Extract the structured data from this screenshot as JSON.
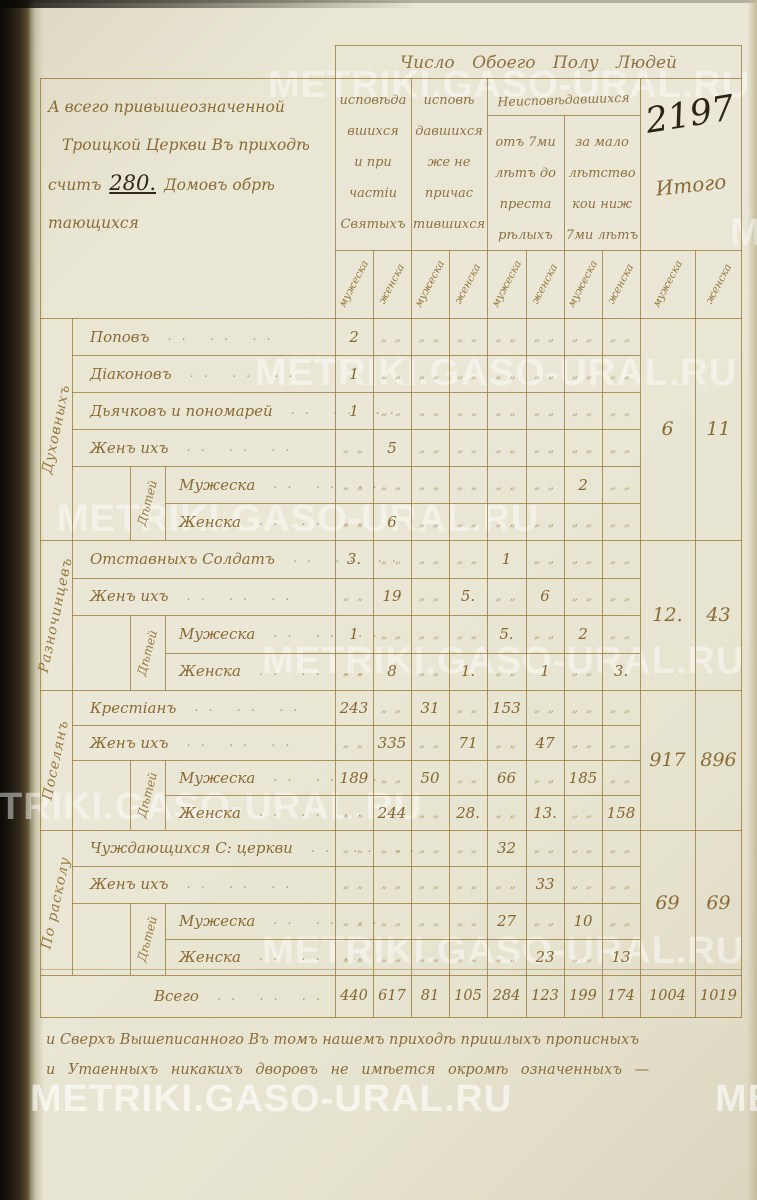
{
  "page": {
    "folio_number": "2197",
    "watermark_text": "METRIKI.GASO-URAL.RU",
    "ditto_mark": "„ „",
    "label_dots": ".. .. ..",
    "intro_note": {
      "line1": "А всего привышеозначенной",
      "line2": "Троицкой Церкви Въ приходѣ",
      "line3_pre": "считъ",
      "house_count": "280.",
      "line3_post": "Домовъ обрѣ",
      "line4": "тающихся"
    },
    "footer_note": {
      "line1": "и Сверхъ Вышеписанного Въ томъ нашемъ приходѣ пришлыхъ прописныхъ",
      "line2": "и Утаенныхъ никакихъ дворовъ не имѣется окромѣ означенныхъ —"
    }
  },
  "table": {
    "main_header": "Число Обоего Полу Людей",
    "group_headers": {
      "confessed_communed": [
        "исповѣда",
        "вшихся",
        "и при",
        "частіи",
        "Святыхъ"
      ],
      "confessed_not_communed": [
        "исповѣ",
        "давшихся",
        "же не",
        "причас",
        "тившихся"
      ],
      "not_confessed_title": "Неисповѣдавшихся",
      "not_confessed_adult": [
        "отъ 7ми",
        "лѣтъ до",
        "преста",
        "рѣлыхъ"
      ],
      "not_confessed_minor": [
        "за мало",
        "лѣтство",
        "кои ниж",
        "7ми лѣтъ"
      ],
      "total_title": "Итого"
    },
    "sex_labels": [
      "мужеска",
      "женска",
      "мужеска",
      "женска",
      "мужеска",
      "женска",
      "мужеска",
      "женска",
      "мужеска",
      "женска"
    ],
    "children_label": "Дѣтей",
    "sections": [
      {
        "side_label": "Духовныхъ",
        "rows": [
          {
            "label": "Поповъ",
            "child": false,
            "values": [
              "2",
              "",
              "",
              "",
              "",
              "",
              "",
              ""
            ]
          },
          {
            "label": "Діаконовъ",
            "child": false,
            "values": [
              "1",
              "",
              "",
              "",
              "",
              "",
              "",
              ""
            ]
          },
          {
            "label": "Дьячковъ и пономарей",
            "child": false,
            "values": [
              "1",
              "",
              "",
              "",
              "",
              "",
              "",
              ""
            ]
          },
          {
            "label": "Женъ ихъ",
            "child": false,
            "values": [
              "",
              "5",
              "",
              "",
              "",
              "",
              "",
              ""
            ]
          },
          {
            "label": "Мужеска",
            "child": true,
            "values": [
              "",
              "",
              "",
              "",
              "",
              "",
              "2",
              ""
            ]
          },
          {
            "label": "Женска",
            "child": true,
            "values": [
              "",
              "6",
              "",
              "",
              "",
              "",
              "",
              ""
            ]
          }
        ],
        "summary": [
          "6",
          "11"
        ]
      },
      {
        "side_label": "Разночинцевъ",
        "rows": [
          {
            "label": "Отставныхъ Солдатъ",
            "child": false,
            "values": [
              "3.",
              "",
              "",
              "",
              "1",
              "",
              "",
              ""
            ]
          },
          {
            "label": "Женъ ихъ",
            "child": false,
            "values": [
              "",
              "19",
              "",
              "5.",
              "",
              "6",
              "",
              ""
            ]
          },
          {
            "label": "Мужеска",
            "child": true,
            "values": [
              "1",
              "",
              "",
              "",
              "5.",
              "",
              "2",
              ""
            ]
          },
          {
            "label": "Женска",
            "child": true,
            "values": [
              "",
              "8",
              "",
              "1.",
              "",
              "1",
              "",
              "3."
            ]
          }
        ],
        "summary": [
          "12.",
          "43"
        ]
      },
      {
        "side_label": "Поселянъ",
        "rows": [
          {
            "label": "Крестіанъ",
            "child": false,
            "values": [
              "243",
              "",
              "31",
              "",
              "153",
              "",
              "",
              ""
            ]
          },
          {
            "label": "Женъ ихъ",
            "child": false,
            "values": [
              "",
              "335",
              "",
              "71",
              "",
              "47",
              "",
              ""
            ]
          },
          {
            "label": "Мужеска",
            "child": true,
            "values": [
              "189",
              "",
              "50",
              "",
              "66",
              "",
              "185",
              ""
            ]
          },
          {
            "label": "Женска",
            "child": true,
            "values": [
              "",
              "244",
              "",
              "28.",
              "",
              "13.",
              "",
              "158"
            ]
          }
        ],
        "summary": [
          "917",
          "896"
        ]
      },
      {
        "side_label": "По расколу",
        "rows": [
          {
            "label": "Чуждающихся С: церкви",
            "child": false,
            "values": [
              "",
              "",
              "",
              "",
              "32",
              "",
              "",
              ""
            ]
          },
          {
            "label": "Женъ ихъ",
            "child": false,
            "values": [
              "",
              "",
              "",
              "",
              "",
              "33",
              "",
              ""
            ]
          },
          {
            "label": "Мужеска",
            "child": true,
            "values": [
              "",
              "",
              "",
              "",
              "27",
              "",
              "10",
              ""
            ]
          },
          {
            "label": "Женска",
            "child": true,
            "values": [
              "",
              "",
              "",
              "",
              "",
              "23",
              "",
              "13"
            ]
          }
        ],
        "summary": [
          "69",
          "69"
        ]
      }
    ],
    "totals": {
      "label": "Всего",
      "values": [
        "440",
        "617",
        "81",
        "105",
        "284",
        "123",
        "199",
        "174",
        "1004",
        "1019"
      ]
    }
  }
}
